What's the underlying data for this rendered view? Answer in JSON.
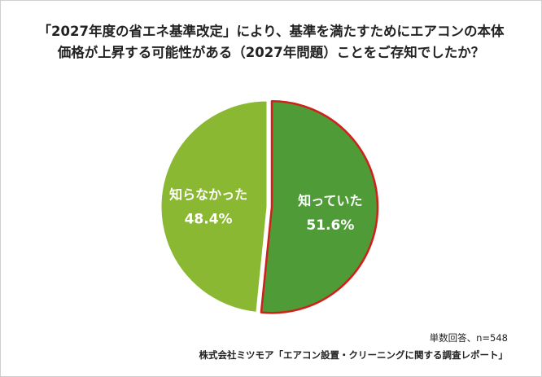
{
  "chart_data": {
    "type": "pie",
    "title_lines": [
      "「2027年度の省エネ基準改定」により、基準を満たすためにエアコンの本体",
      "価格が上昇する可能性がある（2027年問題）ことをご存知でしたか？"
    ],
    "slices": [
      {
        "label": "知っていた",
        "value": 51.6,
        "value_label": "51.6%",
        "color": "#4e9b37",
        "exploded": true
      },
      {
        "label": "知らなかった",
        "value": 48.4,
        "value_label": "48.4%",
        "color": "#8bb832",
        "exploded": false
      }
    ],
    "highlight_color": "#d0201c",
    "note": "単数回答、n=548",
    "source": "株式会社ミツモア「エアコン設置・クリーニングに関する調査レポート」"
  }
}
